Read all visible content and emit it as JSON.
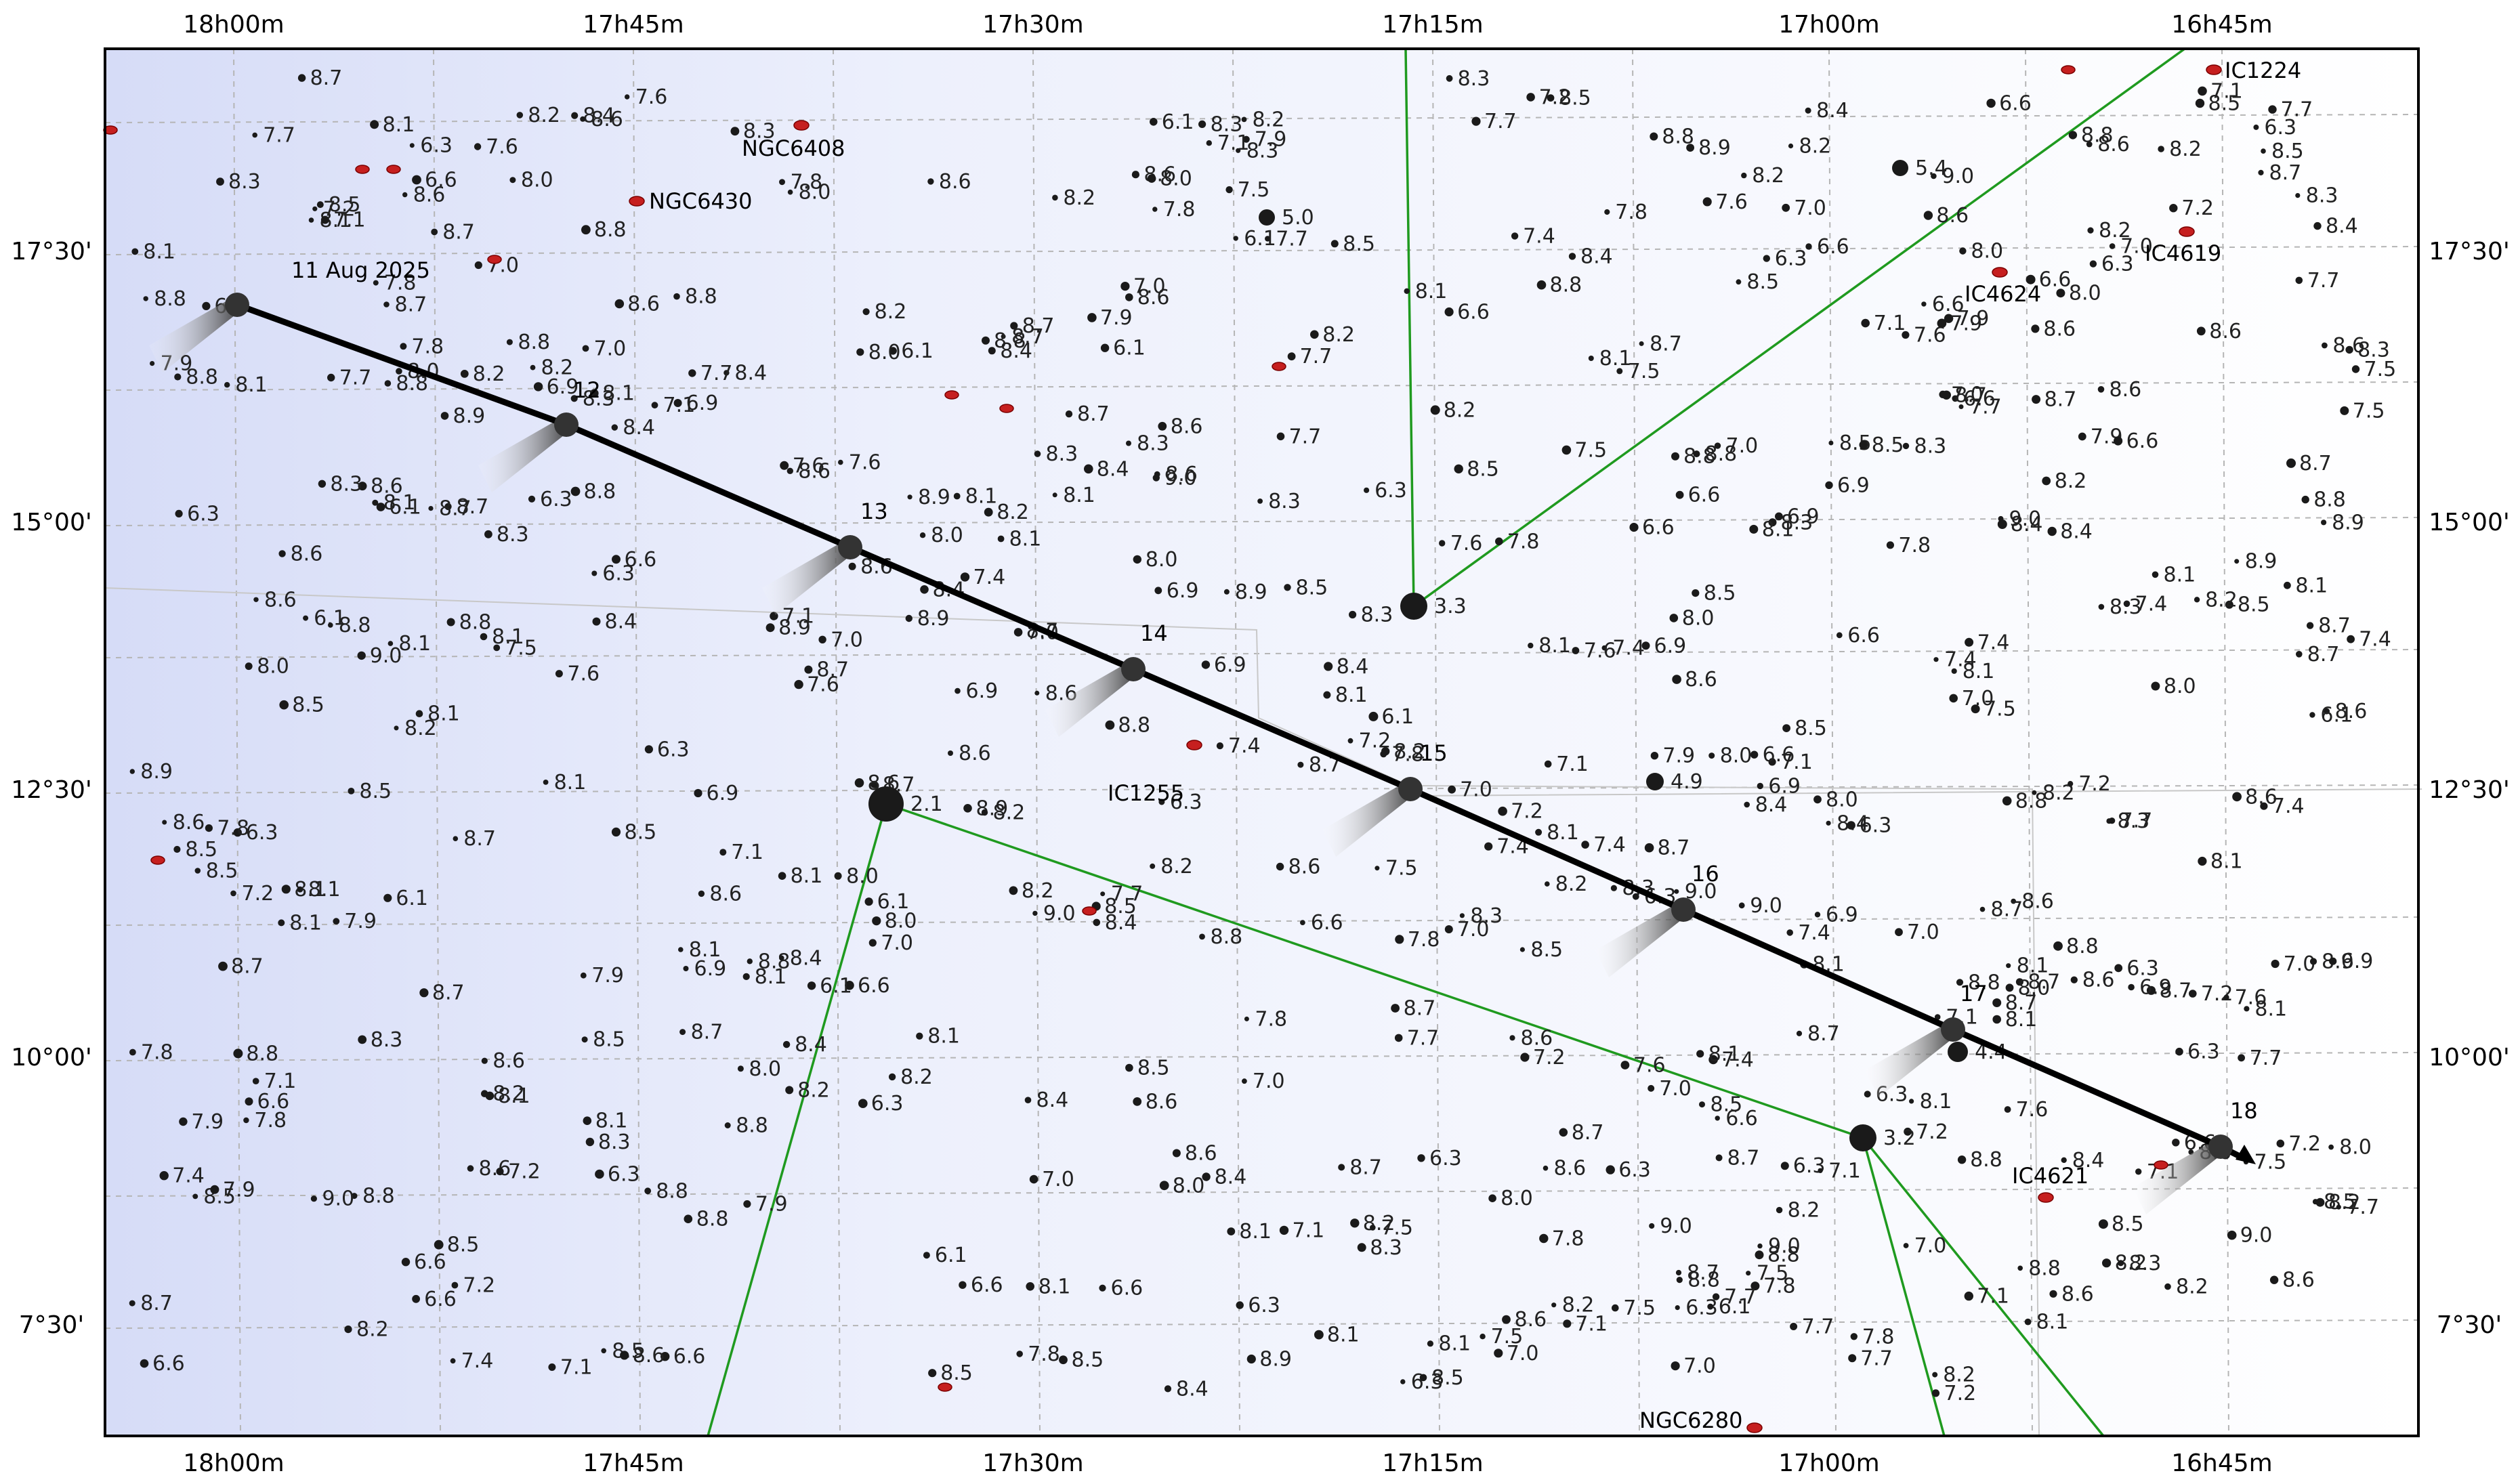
{
  "chart_data": {
    "type": "sky-chart",
    "ra_labels": [
      "18h00m",
      "17h45m",
      "17h30m",
      "17h15m",
      "17h00m",
      "16h45m"
    ],
    "dec_labels": [
      "17°30'",
      "15°00'",
      "12°30'",
      "10°00'",
      "7°30'"
    ],
    "path": {
      "start_label": "11 Aug 2025",
      "points": [
        {
          "label": "",
          "ra": "17h58m",
          "dec": "16°59'"
        },
        {
          "label": "12",
          "ra": "17h46m",
          "dec": "15°53'"
        },
        {
          "label": "13",
          "ra": "17h34m",
          "dec": "14°43'"
        },
        {
          "label": "14",
          "ra": "17h23m",
          "dec": "13°34'"
        },
        {
          "label": "15",
          "ra": "17h15m",
          "dec": "12°27'"
        },
        {
          "label": "16",
          "ra": "17h04m",
          "dec": "11°21'"
        },
        {
          "label": "17",
          "ra": "16h55m",
          "dec": "10°14'"
        },
        {
          "label": "18",
          "ra": "16h45m",
          "dec": "9°08'"
        }
      ]
    },
    "deep_sky_objects": [
      "NGC6408",
      "NGC6430",
      "IC1255",
      "IC4624",
      "IC4619",
      "IC1224",
      "IC4621",
      "NGC6280"
    ],
    "bright_stars": [
      {
        "mag": "2.1"
      },
      {
        "mag": "3.3"
      },
      {
        "mag": "3.2"
      },
      {
        "mag": "4.4"
      },
      {
        "mag": "4.9"
      },
      {
        "mag": "5.0"
      },
      {
        "mag": "5.4"
      }
    ]
  },
  "colors": {
    "background_left": "#d6dcf7",
    "background_right": "#ffffff",
    "path": "#000000",
    "constellation_lines": "#1f9a1f",
    "galaxies": "#c61f1f",
    "grid": "#b5b5b5"
  }
}
